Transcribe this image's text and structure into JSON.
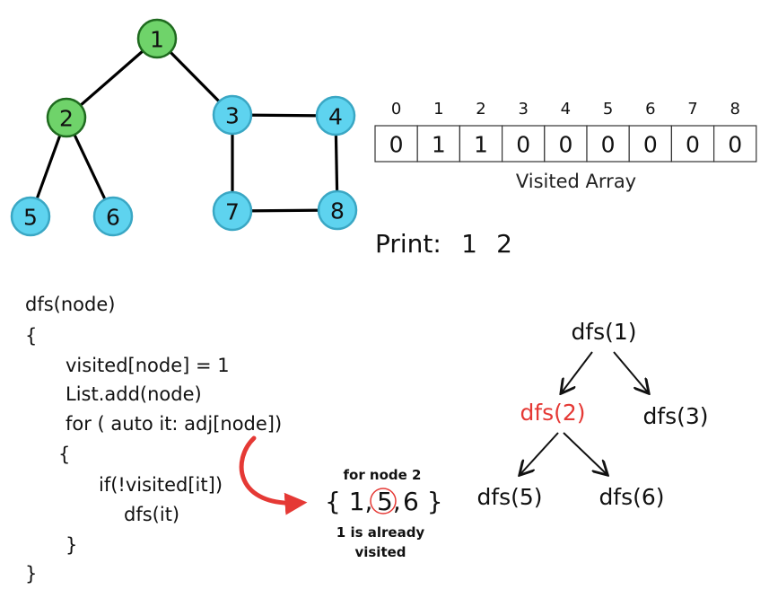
{
  "graph": {
    "nodes": [
      {
        "id": "1",
        "label": "1",
        "visited": true
      },
      {
        "id": "2",
        "label": "2",
        "visited": true
      },
      {
        "id": "3",
        "label": "3",
        "visited": false
      },
      {
        "id": "4",
        "label": "4",
        "visited": false
      },
      {
        "id": "5",
        "label": "5",
        "visited": false
      },
      {
        "id": "6",
        "label": "6",
        "visited": false
      },
      {
        "id": "7",
        "label": "7",
        "visited": false
      },
      {
        "id": "8",
        "label": "8",
        "visited": false
      }
    ],
    "edges": [
      [
        "1",
        "2"
      ],
      [
        "1",
        "3"
      ],
      [
        "2",
        "5"
      ],
      [
        "2",
        "6"
      ],
      [
        "3",
        "4"
      ],
      [
        "3",
        "7"
      ],
      [
        "4",
        "8"
      ],
      [
        "7",
        "8"
      ]
    ],
    "colors": {
      "visited": "#6fd36a",
      "unvisited": "#5ed3ef",
      "visited_stroke": "#1f6a1f",
      "unvisited_stroke": "#3aa7c4"
    }
  },
  "visited_array": {
    "indices": [
      "0",
      "1",
      "2",
      "3",
      "4",
      "5",
      "6",
      "7",
      "8"
    ],
    "values": [
      "0",
      "1",
      "1",
      "0",
      "0",
      "0",
      "0",
      "0",
      "0"
    ],
    "caption": "Visited Array"
  },
  "print": {
    "label": "Print:",
    "values": [
      "1",
      "2"
    ]
  },
  "code": {
    "lines": [
      "dfs(node)",
      "{",
      "visited[node] = 1",
      "List.add(node)",
      "for ( auto it: adj[node])",
      "{",
      "if(!visited[it])",
      "dfs(it)",
      "}",
      "}"
    ]
  },
  "annotation": {
    "title": "for node 2",
    "set_open": "{ 1,",
    "set_highlight": "5,",
    "set_close": "6 }",
    "note_line1": "1 is already",
    "note_line2": "visited",
    "arrow_color": "#e53935"
  },
  "recursion_tree": {
    "root": "dfs(1)",
    "level1": [
      "dfs(2)",
      "dfs(3)"
    ],
    "level2": [
      "dfs(5)",
      "dfs(6)"
    ],
    "highlight_color": "#e53935"
  }
}
